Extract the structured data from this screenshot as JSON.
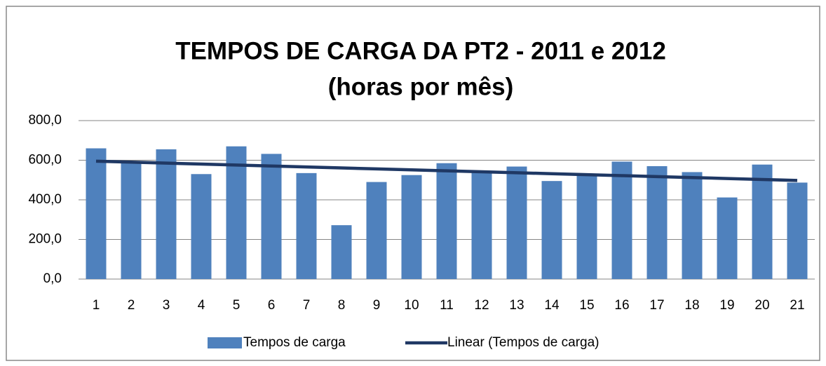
{
  "chart_data": {
    "type": "bar",
    "title": [
      "TEMPOS DE CARGA DA PT2 - 2011 e 2012",
      "(horas por mês)"
    ],
    "categories": [
      "1",
      "2",
      "3",
      "4",
      "5",
      "6",
      "7",
      "8",
      "9",
      "10",
      "11",
      "12",
      "13",
      "14",
      "15",
      "16",
      "17",
      "18",
      "19",
      "20",
      "21"
    ],
    "series": [
      {
        "name": "Tempos de carga",
        "type": "bar",
        "color": "#4f81bd",
        "values": [
          660,
          585,
          655,
          530,
          670,
          632,
          535,
          272,
          490,
          525,
          585,
          545,
          568,
          495,
          530,
          593,
          570,
          540,
          412,
          578,
          487
        ]
      },
      {
        "name": "Linear (Tempos de carga)",
        "type": "line",
        "color": "#1f3864",
        "values": [
          595,
          590.15,
          585.3,
          580.45,
          575.6,
          570.75,
          565.9,
          561.05,
          556.2,
          551.35,
          546.5,
          541.65,
          536.8,
          531.95,
          527.1,
          522.25,
          517.4,
          512.55,
          507.7,
          502.85,
          498
        ]
      }
    ],
    "ylim": [
      0,
      800
    ],
    "yticks": [
      {
        "value": 0,
        "label": "0,0"
      },
      {
        "value": 200,
        "label": "200,0"
      },
      {
        "value": 400,
        "label": "400,0"
      },
      {
        "value": 600,
        "label": "600,0"
      },
      {
        "value": 800,
        "label": "800,0"
      }
    ],
    "grid": true,
    "legend": "bottom"
  }
}
